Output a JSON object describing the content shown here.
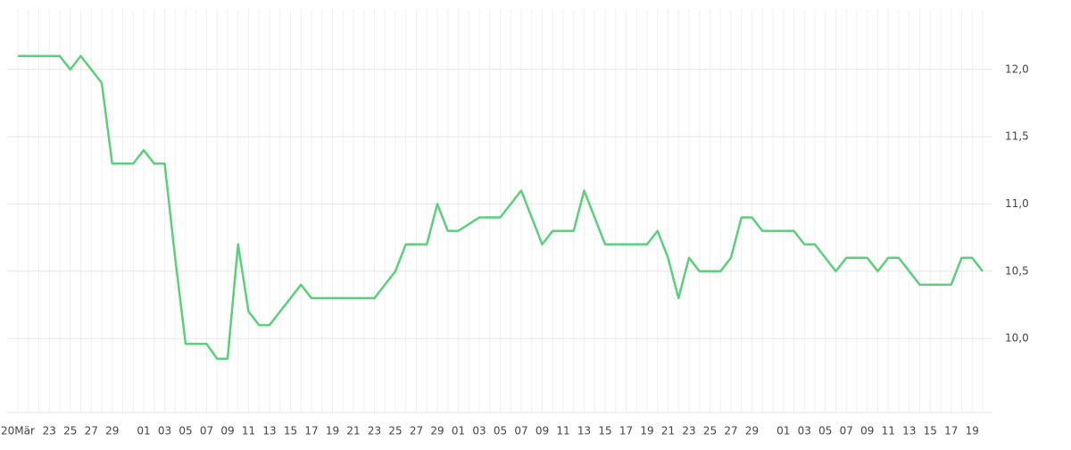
{
  "chart_data": {
    "type": "line",
    "categories": [
      "20Mär",
      null,
      null,
      "23",
      null,
      "25",
      null,
      "27",
      null,
      "29",
      null,
      null,
      "01",
      null,
      "03",
      null,
      "05",
      null,
      "07",
      null,
      "09",
      null,
      "11",
      null,
      "13",
      null,
      "15",
      null,
      "17",
      null,
      "19",
      null,
      "21",
      null,
      "23",
      null,
      "25",
      null,
      "27",
      null,
      "29",
      null,
      "01",
      null,
      "03",
      null,
      "05",
      null,
      "07",
      null,
      "09",
      null,
      "11",
      null,
      "13",
      null,
      "15",
      null,
      "17",
      null,
      "19",
      null,
      "21",
      null,
      "23",
      null,
      "25",
      null,
      "27",
      null,
      "29",
      null,
      null,
      "01",
      null,
      "03",
      null,
      "05",
      null,
      "07",
      null,
      "09",
      null,
      "11",
      null,
      "13",
      null,
      "15",
      null,
      "17",
      null,
      "19",
      null
    ],
    "series": [
      {
        "color": "#5ad07a",
        "values": [
          12.1,
          12.1,
          12.1,
          12.1,
          12.1,
          12.0,
          12.1,
          12.0,
          11.9,
          11.3,
          11.3,
          11.3,
          11.4,
          11.3,
          11.3,
          10.6,
          9.96,
          9.96,
          9.96,
          9.85,
          9.85,
          10.7,
          10.2,
          10.1,
          10.1,
          10.2,
          10.3,
          10.4,
          10.3,
          10.3,
          10.3,
          10.3,
          10.3,
          10.3,
          10.3,
          10.4,
          10.5,
          10.7,
          10.7,
          10.7,
          11.0,
          10.8,
          10.8,
          10.85,
          10.9,
          10.9,
          10.9,
          11.0,
          11.1,
          10.9,
          10.7,
          10.8,
          10.8,
          10.8,
          11.1,
          10.9,
          10.7,
          10.7,
          10.7,
          10.7,
          10.7,
          10.8,
          10.6,
          10.3,
          10.6,
          10.5,
          10.5,
          10.5,
          10.6,
          10.9,
          10.9,
          10.8,
          10.8,
          10.8,
          10.8,
          10.7,
          10.7,
          10.6,
          10.5,
          10.6,
          10.6,
          10.6,
          10.5,
          10.6,
          10.6,
          10.5,
          10.4,
          10.4,
          10.4,
          10.4,
          10.6,
          10.6,
          10.5
        ]
      }
    ],
    "ylim": [
      9.45,
      12.45
    ],
    "yticks": [
      {
        "value": 10,
        "label": "10,0"
      },
      {
        "value": 10.5,
        "label": "10,5"
      },
      {
        "value": 11,
        "label": "11,0"
      },
      {
        "value": 11.5,
        "label": "11,5"
      },
      {
        "value": 12,
        "label": "12,0"
      }
    ],
    "grid": true
  }
}
